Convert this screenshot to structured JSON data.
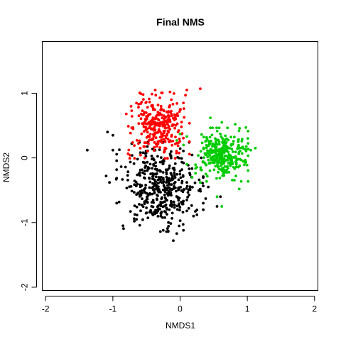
{
  "chart_data": {
    "type": "scatter",
    "title": "Final NMS",
    "xlabel": "NMDS1",
    "ylabel": "NMDS2",
    "xlim": [
      -2.05,
      2.05
    ],
    "ylim": [
      -2.05,
      1.8
    ],
    "xticks": [
      -2,
      -1,
      0,
      1,
      2
    ],
    "yticks": [
      -2,
      -1,
      0,
      1
    ],
    "grid": false,
    "legend": "none",
    "series": [
      {
        "color": "#000000",
        "center": [
          -0.3,
          -0.45
        ],
        "spread": [
          0.28,
          0.3
        ],
        "count": 420,
        "points": [
          [
            -1.38,
            0.12
          ],
          [
            -1.08,
            0.4
          ],
          [
            -1.0,
            0.35
          ],
          [
            -1.1,
            -0.28
          ],
          [
            -1.05,
            -0.38
          ],
          [
            -0.95,
            -0.33
          ],
          [
            -1.0,
            0.12
          ],
          [
            -0.72,
            0.22
          ],
          [
            -0.85,
            -1.05
          ],
          [
            -0.68,
            -0.98
          ],
          [
            -0.1,
            -1.28
          ],
          [
            0.2,
            -0.9
          ],
          [
            0.25,
            -0.88
          ],
          [
            0.55,
            -0.75
          ],
          [
            0.6,
            -0.6
          ],
          [
            0.42,
            -0.45
          ],
          [
            0.38,
            -0.63
          ],
          [
            0.1,
            -0.38
          ],
          [
            -0.25,
            -1.12
          ],
          [
            0.05,
            -1.12
          ],
          [
            -0.05,
            -1.17
          ],
          [
            -0.55,
            0.08
          ],
          [
            0.1,
            -0.82
          ]
        ]
      },
      {
        "color": "#ff0000",
        "center": [
          -0.32,
          0.5
        ],
        "spread": [
          0.2,
          0.22
        ],
        "count": 300,
        "points": [
          [
            -0.8,
            0.68
          ],
          [
            -0.72,
            0.73
          ],
          [
            -0.15,
            1.02
          ],
          [
            0.08,
            0.97
          ],
          [
            0.1,
            1.05
          ],
          [
            0.3,
            1.07
          ],
          [
            -0.37,
            1.05
          ],
          [
            -0.7,
            0.45
          ],
          [
            0.05,
            0.85
          ],
          [
            0.0,
            0.75
          ],
          [
            -0.55,
            0.98
          ]
        ]
      },
      {
        "color": "#00cc00",
        "center": [
          0.62,
          0.05
        ],
        "spread": [
          0.17,
          0.18
        ],
        "count": 320,
        "points": [
          [
            0.0,
            0.37
          ],
          [
            0.1,
            0.33
          ],
          [
            -0.05,
            0.27
          ],
          [
            0.05,
            0.2
          ],
          [
            0.45,
            0.62
          ],
          [
            0.62,
            0.55
          ],
          [
            0.82,
            0.52
          ],
          [
            0.98,
            0.47
          ],
          [
            1.12,
            0.15
          ],
          [
            1.05,
            0.12
          ],
          [
            0.18,
            -0.3
          ],
          [
            0.3,
            -0.38
          ],
          [
            0.55,
            -0.6
          ],
          [
            0.62,
            -0.75
          ],
          [
            0.88,
            -0.48
          ],
          [
            0.1,
            -0.1
          ]
        ]
      }
    ]
  }
}
